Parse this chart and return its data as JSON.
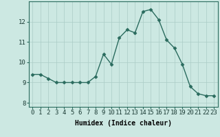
{
  "xlabel": "Humidex (Indice chaleur)",
  "x": [
    0,
    1,
    2,
    3,
    4,
    5,
    6,
    7,
    8,
    9,
    10,
    11,
    12,
    13,
    14,
    15,
    16,
    17,
    18,
    19,
    20,
    21,
    22,
    23
  ],
  "y": [
    9.4,
    9.4,
    9.2,
    9.0,
    9.0,
    9.0,
    9.0,
    9.0,
    9.3,
    10.4,
    9.9,
    11.2,
    11.6,
    11.45,
    12.5,
    12.6,
    12.1,
    11.1,
    10.7,
    9.9,
    8.8,
    8.45,
    8.35,
    8.35
  ],
  "line_color": "#2a6b5e",
  "marker": "D",
  "marker_size": 2.5,
  "bg_color": "#cce8e2",
  "grid_color": "#aaccc6",
  "ylim": [
    7.8,
    13.0
  ],
  "yticks": [
    8,
    9,
    10,
    11,
    12
  ],
  "xlim": [
    -0.5,
    23.5
  ],
  "xticks": [
    0,
    1,
    2,
    3,
    4,
    5,
    6,
    7,
    8,
    9,
    10,
    11,
    12,
    13,
    14,
    15,
    16,
    17,
    18,
    19,
    20,
    21,
    22,
    23
  ],
  "xlabel_fontsize": 7,
  "tick_fontsize": 6.5,
  "line_width": 1.0
}
